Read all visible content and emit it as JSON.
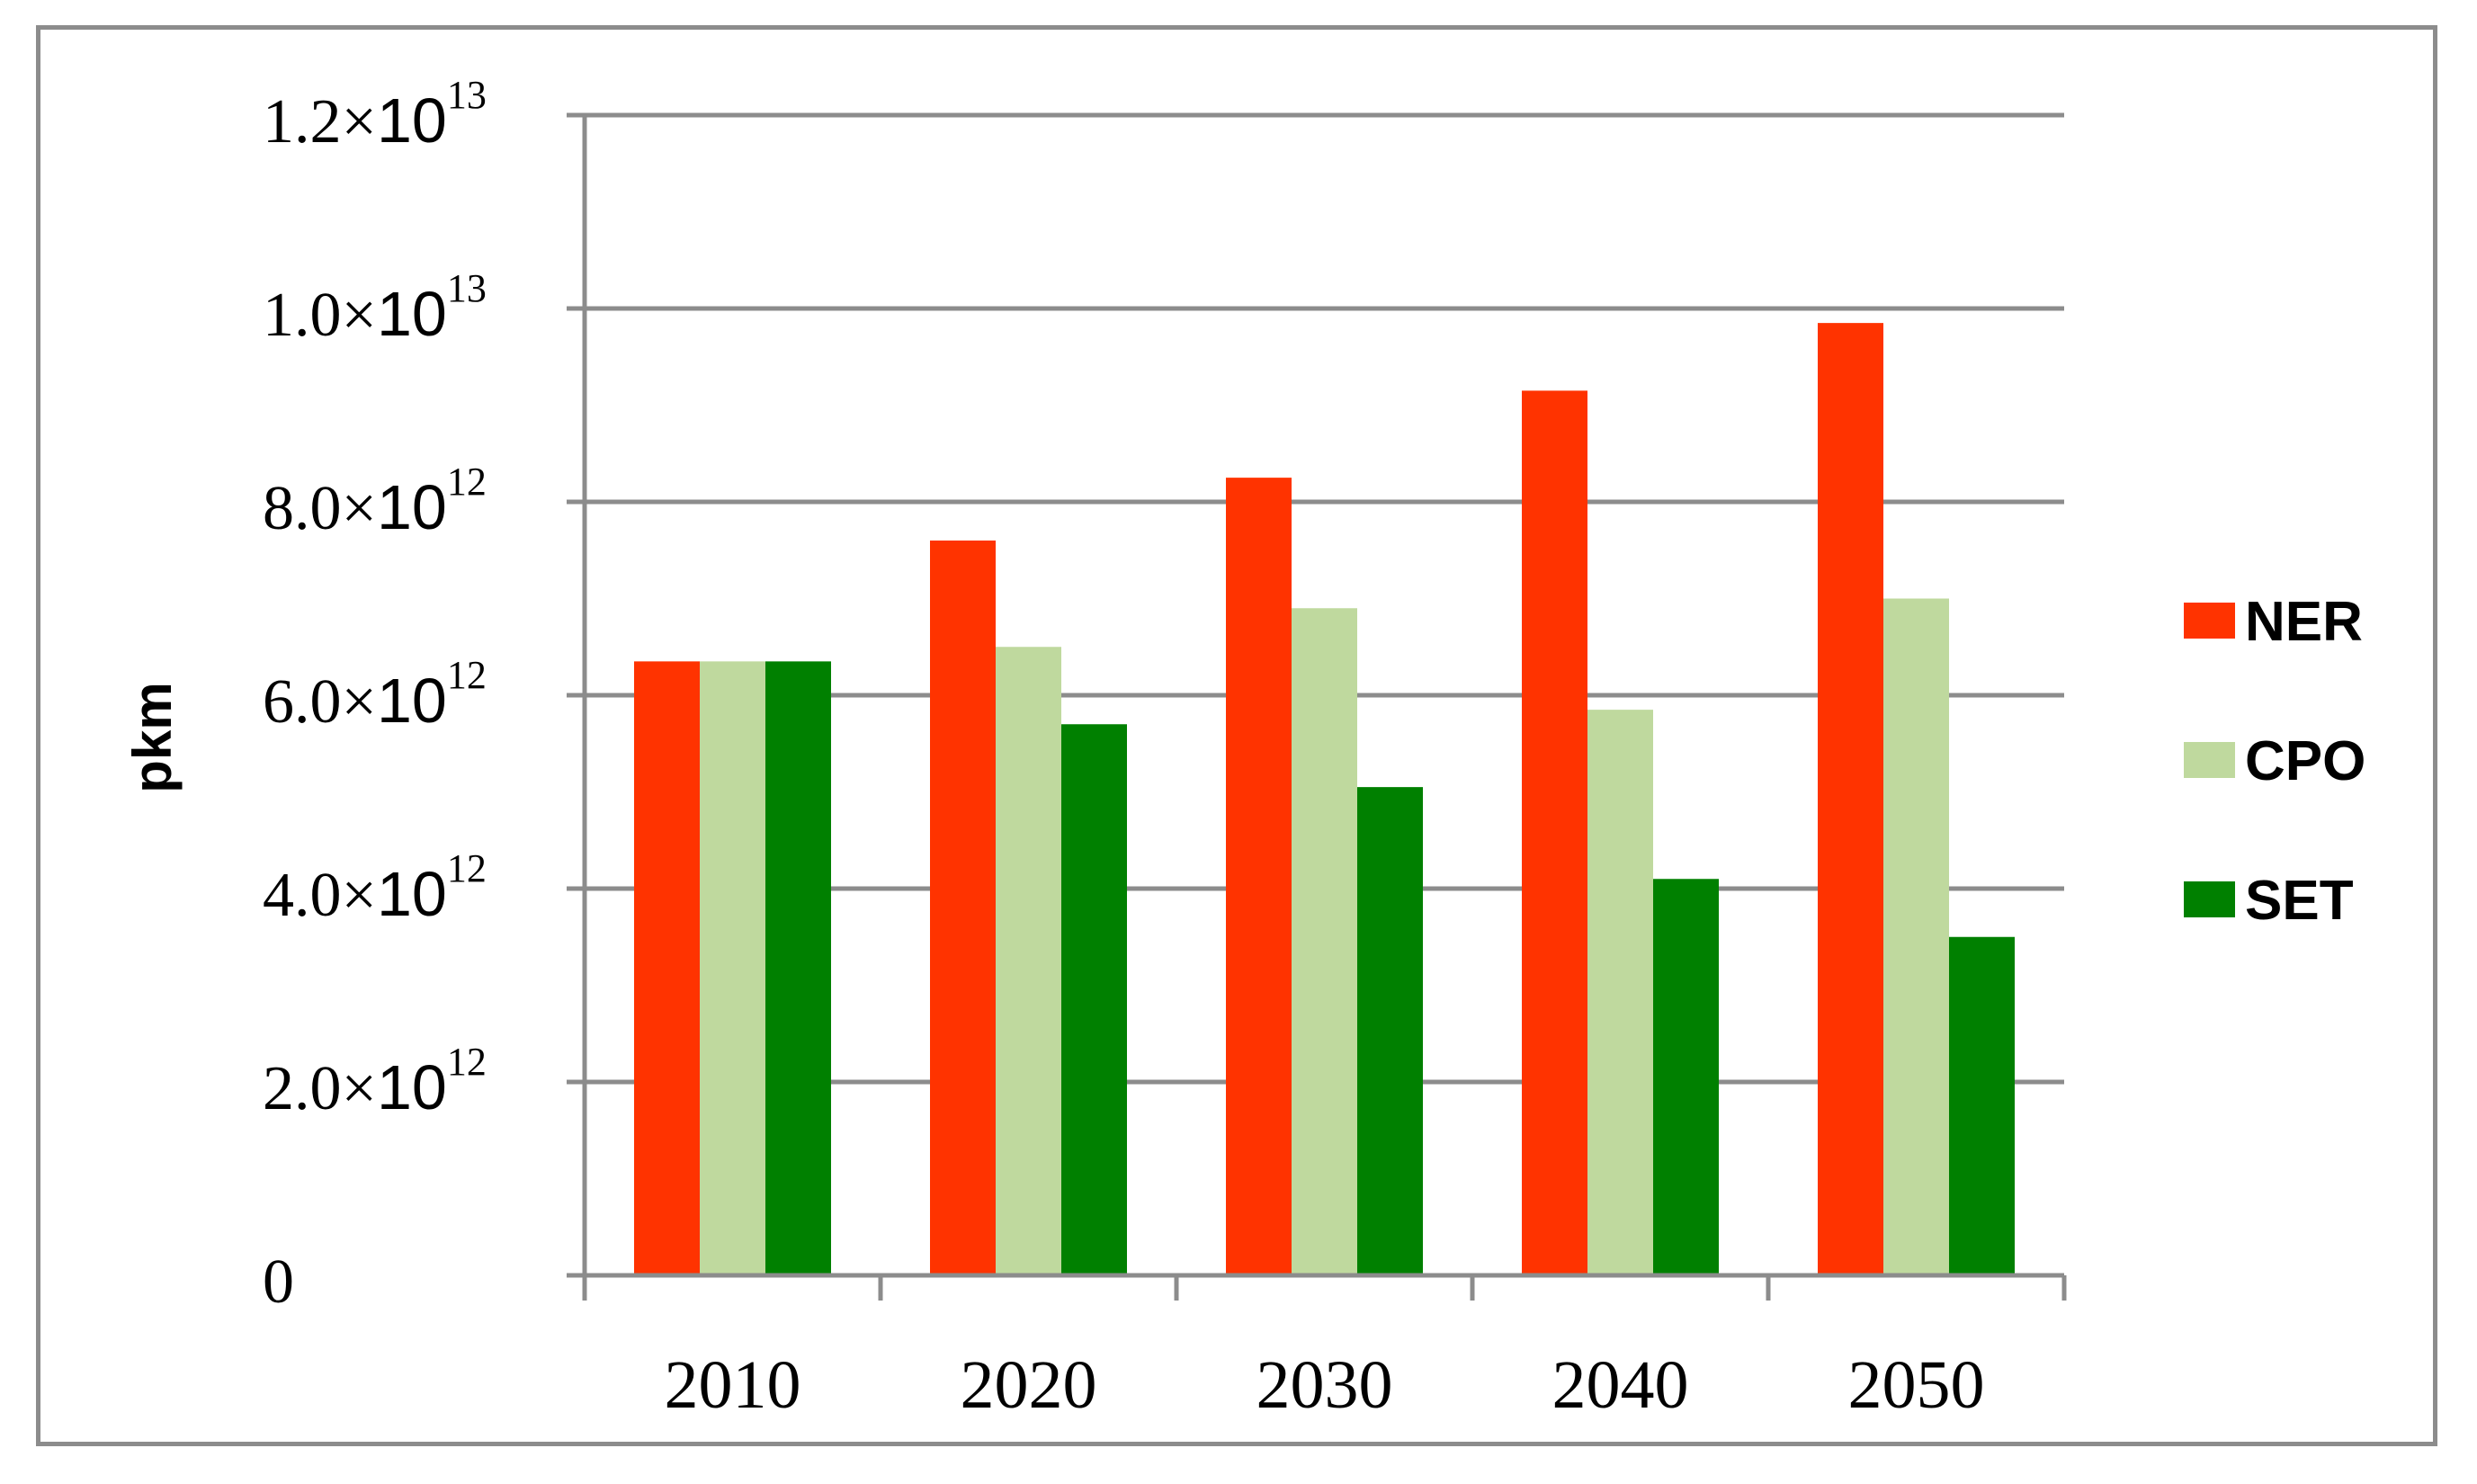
{
  "chart_data": {
    "type": "bar",
    "title": "",
    "xlabel": "",
    "ylabel": "pkm",
    "categories": [
      "2010",
      "2020",
      "2030",
      "2040",
      "2050"
    ],
    "series": [
      {
        "name": "NER",
        "color": "#ff3300",
        "values": [
          6350000000000.0,
          7600000000000.0,
          8250000000000.0,
          9150000000000.0,
          9850000000000.0
        ]
      },
      {
        "name": "CPO",
        "color": "#bfd99e",
        "values": [
          6350000000000.0,
          6500000000000.0,
          6900000000000.0,
          5850000000000.0,
          7000000000000.0
        ]
      },
      {
        "name": "SET",
        "color": "#008000",
        "values": [
          6350000000000.0,
          5700000000000.0,
          5050000000000.0,
          4100000000000.0,
          3500000000000.0
        ]
      }
    ],
    "ylim": [
      0,
      12000000000000
    ],
    "yticks": [
      {
        "value": 0,
        "mantissa": "0",
        "times": "",
        "exponent": ""
      },
      {
        "value": 2000000000000,
        "mantissa": "2.0",
        "times": "×",
        "exponent": "12"
      },
      {
        "value": 4000000000000,
        "mantissa": "4.0",
        "times": "×",
        "exponent": "12"
      },
      {
        "value": 6000000000000,
        "mantissa": "6.0",
        "times": "×",
        "exponent": "12"
      },
      {
        "value": 8000000000000,
        "mantissa": "8.0",
        "times": "×",
        "exponent": "12"
      },
      {
        "value": 10000000000000,
        "mantissa": "1.0",
        "times": "×",
        "exponent": "13"
      },
      {
        "value": 12000000000000,
        "mantissa": "1.2",
        "times": "×",
        "exponent": "13"
      }
    ],
    "grid": true,
    "legend_position": "right"
  }
}
